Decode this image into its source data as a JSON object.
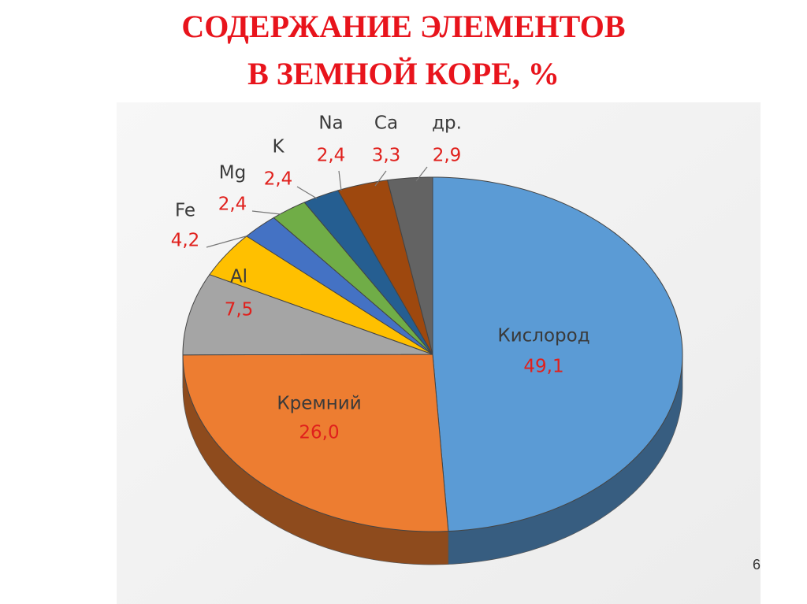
{
  "chart_data": {
    "type": "pie",
    "title": [
      "СОДЕРЖАНИЕ ЭЛЕМЕНТОВ",
      "В ЗЕМНОЙ КОРЕ, %"
    ],
    "categories": [
      "Кислород",
      "Кремний",
      "Al",
      "Fe",
      "Mg",
      "K",
      "Na",
      "Ca",
      "др."
    ],
    "values": [
      49.1,
      26.0,
      7.5,
      4.2,
      2.4,
      2.4,
      2.4,
      3.3,
      2.9
    ],
    "value_labels": [
      "49,1",
      "26,0",
      "7,5",
      "4,2",
      "2,4",
      "2,4",
      "2,4",
      "3,3",
      "2,9"
    ],
    "colors": [
      "#5b9bd5",
      "#ed7d31",
      "#a5a5a5",
      "#ffc000",
      "#4472c4",
      "#70ad47",
      "#255e91",
      "#9e480e",
      "#636363"
    ]
  },
  "slide_number": "6"
}
